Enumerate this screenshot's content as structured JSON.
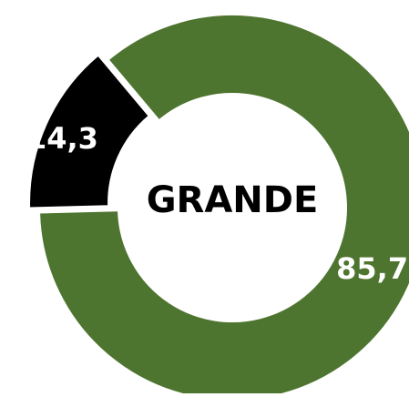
{
  "chart_data": {
    "type": "donut",
    "center_label": "GRANDE",
    "categories": [
      null,
      null
    ],
    "values": [
      85.7,
      14.3
    ],
    "value_labels": [
      "85,7",
      "14,3"
    ],
    "colors": [
      "#4e7530",
      "#000000"
    ]
  }
}
